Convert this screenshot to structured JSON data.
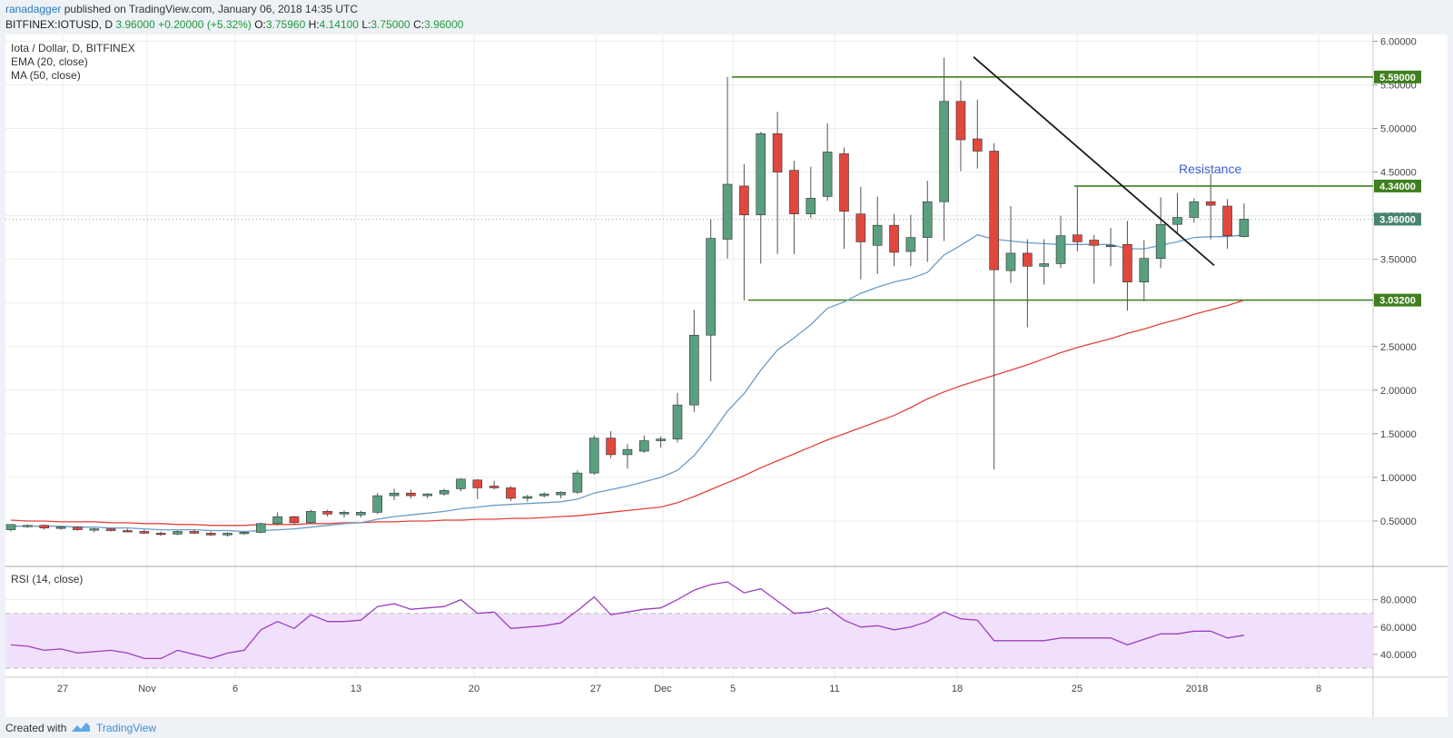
{
  "header": {
    "author": "ranadagger",
    "published_text": "published on TradingView.com, January 06, 2018 14:35 UTC",
    "symbol": "BITFINEX:IOTUSD, D",
    "last": "3.96000",
    "change": "+0.20000 (+5.32%)",
    "ohlc_labels": [
      "O:",
      "H:",
      "L:",
      "C:"
    ],
    "ohlc_values": [
      "3.75960",
      "4.14100",
      "3.75000",
      "3.96000"
    ]
  },
  "legend": {
    "title": "Iota / Dollar, D, BITFINEX",
    "ema": "EMA (20, close)",
    "ma": "MA (50, close)",
    "rsi": "RSI (14, close)"
  },
  "annotation": {
    "resistance": "Resistance"
  },
  "footer": {
    "created_with": "Created with",
    "brand": "TradingView"
  },
  "colors": {
    "up": "#5a9f7f",
    "down": "#e0483d",
    "ema": "#6b9cc8",
    "ma": "#e2443a",
    "levels": "#3f7f1f",
    "trendline": "#1a1a1a",
    "rsi": "#9b3fbf",
    "rsi_band": "#f1e0fb"
  },
  "chart_data": {
    "type": "candlestick",
    "x_ticks": [
      "27",
      "Nov",
      "6",
      "13",
      "20",
      "27",
      "Dec",
      "5",
      "11",
      "18",
      "25",
      "2018",
      "8"
    ],
    "y_ticks": [
      "6.00000",
      "5.50000",
      "5.00000",
      "4.50000",
      "4.00000",
      "3.50000",
      "3.00000",
      "2.50000",
      "2.00000",
      "1.50000",
      "1.00000",
      "0.50000"
    ],
    "ylim": [
      0,
      6.1
    ],
    "levels": [
      {
        "label": "5.59000",
        "value": 5.59
      },
      {
        "label": "4.34000",
        "value": 4.34
      },
      {
        "label": "3.03200",
        "value": 3.032
      }
    ],
    "last_price": {
      "label": "3.96000",
      "value": 3.96
    },
    "candles": [
      {
        "o": 0.4,
        "h": 0.46,
        "l": 0.38,
        "c": 0.46
      },
      {
        "o": 0.44,
        "h": 0.46,
        "l": 0.42,
        "c": 0.45
      },
      {
        "o": 0.45,
        "h": 0.46,
        "l": 0.4,
        "c": 0.42
      },
      {
        "o": 0.42,
        "h": 0.44,
        "l": 0.4,
        "c": 0.43
      },
      {
        "o": 0.43,
        "h": 0.44,
        "l": 0.39,
        "c": 0.4
      },
      {
        "o": 0.4,
        "h": 0.42,
        "l": 0.37,
        "c": 0.41
      },
      {
        "o": 0.41,
        "h": 0.42,
        "l": 0.38,
        "c": 0.39
      },
      {
        "o": 0.39,
        "h": 0.41,
        "l": 0.37,
        "c": 0.38
      },
      {
        "o": 0.38,
        "h": 0.4,
        "l": 0.35,
        "c": 0.36
      },
      {
        "o": 0.36,
        "h": 0.38,
        "l": 0.33,
        "c": 0.35
      },
      {
        "o": 0.35,
        "h": 0.39,
        "l": 0.34,
        "c": 0.38
      },
      {
        "o": 0.38,
        "h": 0.4,
        "l": 0.35,
        "c": 0.36
      },
      {
        "o": 0.36,
        "h": 0.38,
        "l": 0.33,
        "c": 0.34
      },
      {
        "o": 0.34,
        "h": 0.37,
        "l": 0.32,
        "c": 0.36
      },
      {
        "o": 0.36,
        "h": 0.38,
        "l": 0.34,
        "c": 0.37
      },
      {
        "o": 0.37,
        "h": 0.48,
        "l": 0.36,
        "c": 0.47
      },
      {
        "o": 0.47,
        "h": 0.6,
        "l": 0.45,
        "c": 0.55
      },
      {
        "o": 0.55,
        "h": 0.56,
        "l": 0.46,
        "c": 0.48
      },
      {
        "o": 0.48,
        "h": 0.63,
        "l": 0.47,
        "c": 0.61
      },
      {
        "o": 0.61,
        "h": 0.63,
        "l": 0.55,
        "c": 0.58
      },
      {
        "o": 0.58,
        "h": 0.62,
        "l": 0.54,
        "c": 0.6
      },
      {
        "o": 0.57,
        "h": 0.62,
        "l": 0.54,
        "c": 0.6
      },
      {
        "o": 0.6,
        "h": 0.82,
        "l": 0.58,
        "c": 0.79
      },
      {
        "o": 0.79,
        "h": 0.87,
        "l": 0.74,
        "c": 0.82
      },
      {
        "o": 0.82,
        "h": 0.86,
        "l": 0.76,
        "c": 0.79
      },
      {
        "o": 0.79,
        "h": 0.82,
        "l": 0.76,
        "c": 0.81
      },
      {
        "o": 0.81,
        "h": 0.87,
        "l": 0.79,
        "c": 0.85
      },
      {
        "o": 0.87,
        "h": 0.99,
        "l": 0.84,
        "c": 0.98
      },
      {
        "o": 0.97,
        "h": 0.98,
        "l": 0.75,
        "c": 0.88
      },
      {
        "o": 0.9,
        "h": 0.96,
        "l": 0.86,
        "c": 0.88
      },
      {
        "o": 0.88,
        "h": 0.9,
        "l": 0.73,
        "c": 0.76
      },
      {
        "o": 0.76,
        "h": 0.8,
        "l": 0.72,
        "c": 0.78
      },
      {
        "o": 0.79,
        "h": 0.83,
        "l": 0.77,
        "c": 0.81
      },
      {
        "o": 0.8,
        "h": 0.84,
        "l": 0.76,
        "c": 0.83
      },
      {
        "o": 0.83,
        "h": 1.08,
        "l": 0.81,
        "c": 1.05
      },
      {
        "o": 1.05,
        "h": 1.48,
        "l": 1.03,
        "c": 1.45
      },
      {
        "o": 1.45,
        "h": 1.53,
        "l": 1.22,
        "c": 1.26
      },
      {
        "o": 1.26,
        "h": 1.38,
        "l": 1.1,
        "c": 1.32
      },
      {
        "o": 1.3,
        "h": 1.48,
        "l": 1.28,
        "c": 1.42
      },
      {
        "o": 1.42,
        "h": 1.47,
        "l": 1.34,
        "c": 1.44
      },
      {
        "o": 1.44,
        "h": 1.97,
        "l": 1.4,
        "c": 1.83
      },
      {
        "o": 1.83,
        "h": 2.92,
        "l": 1.75,
        "c": 2.63
      },
      {
        "o": 2.63,
        "h": 3.96,
        "l": 2.1,
        "c": 3.74
      },
      {
        "o": 3.73,
        "h": 5.59,
        "l": 3.51,
        "c": 4.36
      },
      {
        "o": 4.34,
        "h": 4.59,
        "l": 3.03,
        "c": 4.01
      },
      {
        "o": 4.01,
        "h": 4.96,
        "l": 3.45,
        "c": 4.94
      },
      {
        "o": 4.94,
        "h": 5.19,
        "l": 3.56,
        "c": 4.5
      },
      {
        "o": 4.52,
        "h": 4.63,
        "l": 3.56,
        "c": 4.02
      },
      {
        "o": 4.02,
        "h": 4.56,
        "l": 3.97,
        "c": 4.2
      },
      {
        "o": 4.22,
        "h": 5.06,
        "l": 4.17,
        "c": 4.73
      },
      {
        "o": 4.71,
        "h": 4.78,
        "l": 3.62,
        "c": 4.05
      },
      {
        "o": 4.02,
        "h": 4.33,
        "l": 3.27,
        "c": 3.7
      },
      {
        "o": 3.66,
        "h": 4.22,
        "l": 3.33,
        "c": 3.89
      },
      {
        "o": 3.89,
        "h": 4.02,
        "l": 3.42,
        "c": 3.58
      },
      {
        "o": 3.59,
        "h": 4.01,
        "l": 3.42,
        "c": 3.75
      },
      {
        "o": 3.75,
        "h": 4.4,
        "l": 3.47,
        "c": 4.16
      },
      {
        "o": 4.16,
        "h": 5.81,
        "l": 3.71,
        "c": 5.31
      },
      {
        "o": 5.31,
        "h": 5.55,
        "l": 4.51,
        "c": 4.87
      },
      {
        "o": 4.88,
        "h": 5.33,
        "l": 4.54,
        "c": 4.74
      },
      {
        "o": 4.74,
        "h": 4.83,
        "l": 1.09,
        "c": 3.38
      },
      {
        "o": 3.37,
        "h": 4.11,
        "l": 3.23,
        "c": 3.57
      },
      {
        "o": 3.57,
        "h": 3.73,
        "l": 2.72,
        "c": 3.42
      },
      {
        "o": 3.42,
        "h": 3.73,
        "l": 3.21,
        "c": 3.45
      },
      {
        "o": 3.45,
        "h": 4.0,
        "l": 3.4,
        "c": 3.77
      },
      {
        "o": 3.78,
        "h": 4.33,
        "l": 3.59,
        "c": 3.7
      },
      {
        "o": 3.72,
        "h": 3.78,
        "l": 3.22,
        "c": 3.66
      },
      {
        "o": 3.66,
        "h": 3.86,
        "l": 3.42,
        "c": 3.66
      },
      {
        "o": 3.67,
        "h": 3.94,
        "l": 2.91,
        "c": 3.24
      },
      {
        "o": 3.24,
        "h": 3.72,
        "l": 3.02,
        "c": 3.51
      },
      {
        "o": 3.51,
        "h": 4.21,
        "l": 3.4,
        "c": 3.9
      },
      {
        "o": 3.9,
        "h": 4.26,
        "l": 3.79,
        "c": 3.98
      },
      {
        "o": 3.98,
        "h": 4.2,
        "l": 3.92,
        "c": 4.16
      },
      {
        "o": 4.16,
        "h": 4.48,
        "l": 3.73,
        "c": 4.12
      },
      {
        "o": 4.11,
        "h": 4.19,
        "l": 3.62,
        "c": 3.77
      },
      {
        "o": 3.76,
        "h": 4.14,
        "l": 3.75,
        "c": 3.96
      }
    ],
    "ema20": [
      0.44,
      0.44,
      0.44,
      0.44,
      0.43,
      0.43,
      0.42,
      0.42,
      0.41,
      0.4,
      0.4,
      0.4,
      0.39,
      0.39,
      0.38,
      0.39,
      0.4,
      0.41,
      0.43,
      0.45,
      0.47,
      0.48,
      0.52,
      0.55,
      0.57,
      0.59,
      0.61,
      0.64,
      0.66,
      0.68,
      0.69,
      0.7,
      0.71,
      0.72,
      0.75,
      0.82,
      0.86,
      0.9,
      0.95,
      1.0,
      1.08,
      1.25,
      1.49,
      1.76,
      1.96,
      2.23,
      2.46,
      2.6,
      2.75,
      2.94,
      3.01,
      3.11,
      3.18,
      3.24,
      3.28,
      3.35,
      3.55,
      3.66,
      3.78,
      3.73,
      3.71,
      3.69,
      3.68,
      3.67,
      3.67,
      3.67,
      3.67,
      3.62,
      3.62,
      3.66,
      3.7,
      3.75,
      3.76,
      3.76,
      3.78
    ],
    "ma50": [
      0.51,
      0.5,
      0.5,
      0.49,
      0.49,
      0.49,
      0.48,
      0.48,
      0.47,
      0.47,
      0.46,
      0.46,
      0.45,
      0.45,
      0.45,
      0.46,
      0.46,
      0.46,
      0.47,
      0.47,
      0.48,
      0.48,
      0.49,
      0.49,
      0.5,
      0.5,
      0.51,
      0.51,
      0.52,
      0.52,
      0.53,
      0.53,
      0.54,
      0.55,
      0.56,
      0.58,
      0.6,
      0.62,
      0.64,
      0.66,
      0.71,
      0.78,
      0.86,
      0.94,
      1.02,
      1.11,
      1.19,
      1.27,
      1.35,
      1.43,
      1.5,
      1.57,
      1.64,
      1.71,
      1.8,
      1.9,
      1.98,
      2.05,
      2.11,
      2.17,
      2.23,
      2.29,
      2.36,
      2.43,
      2.49,
      2.54,
      2.59,
      2.65,
      2.7,
      2.76,
      2.81,
      2.87,
      2.92,
      2.97,
      3.03
    ],
    "rsi": {
      "label": "RSI (14, close)",
      "y_ticks": [
        "80.0000",
        "60.0000",
        "40.0000"
      ],
      "ylim": [
        30,
        95
      ],
      "band": [
        30,
        70
      ],
      "values": [
        47,
        46,
        43,
        44,
        41,
        42,
        43,
        41,
        37,
        37,
        43,
        40,
        37,
        41,
        43,
        58,
        64,
        59,
        69,
        64,
        64,
        65,
        75,
        77,
        73,
        74,
        75,
        80,
        70,
        71,
        59,
        60,
        61,
        63,
        72,
        82,
        69,
        71,
        73,
        74,
        80,
        87,
        91,
        93,
        85,
        88,
        79,
        70,
        71,
        74,
        65,
        60,
        61,
        58,
        60,
        64,
        71,
        66,
        65,
        50,
        50,
        50,
        50,
        52,
        52,
        52,
        52,
        47,
        51,
        55,
        55,
        57,
        57,
        52,
        54
      ]
    }
  }
}
